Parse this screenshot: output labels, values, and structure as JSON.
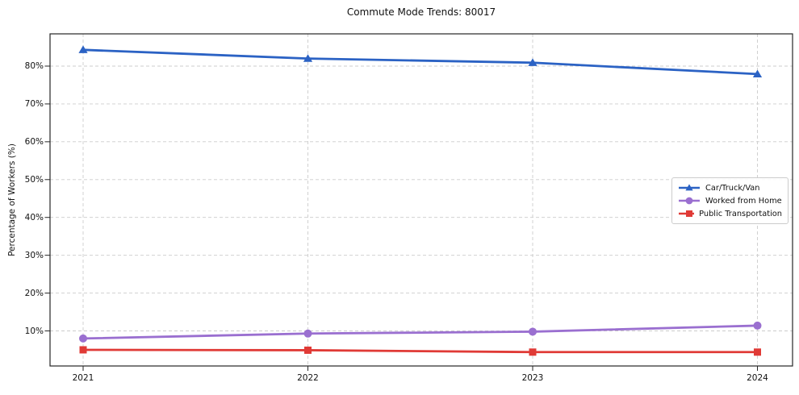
{
  "title": "Commute Mode Trends: 80017",
  "axes": {
    "ylabel": "Percentage of Workers (%)",
    "y_tick_labels": [
      "10%",
      "20%",
      "30%",
      "40%",
      "50%",
      "60%",
      "70%",
      "80%"
    ],
    "y_tick_values": [
      10,
      20,
      30,
      40,
      50,
      60,
      70,
      80
    ],
    "x_tick_labels": [
      "2021",
      "2022",
      "2023",
      "2024"
    ]
  },
  "colors": {
    "car_truck_van": "#2b62c4",
    "worked_from_home": "#9a6fd0",
    "public_transportation": "#e03a36",
    "grid": "#cccccc",
    "spine": "#262626",
    "text": "#111111"
  },
  "chart_data": {
    "type": "line",
    "title": "Commute Mode Trends: 80017",
    "xlabel": "",
    "ylabel": "Percentage of Workers (%)",
    "x": [
      2021,
      2022,
      2023,
      2024
    ],
    "series": [
      {
        "name": "Car/Truck/Van",
        "marker": "triangle",
        "color": "#2b62c4",
        "values": [
          84.3,
          82.0,
          80.9,
          77.9
        ]
      },
      {
        "name": "Worked from Home",
        "marker": "circle",
        "color": "#9a6fd0",
        "values": [
          8.0,
          9.3,
          9.8,
          11.4
        ]
      },
      {
        "name": "Public Transportation",
        "marker": "square",
        "color": "#e03a36",
        "values": [
          5.0,
          4.9,
          4.4,
          4.4
        ]
      }
    ],
    "ylim": [
      0.7,
      88.5
    ],
    "grid": true,
    "grid_style": "dashed",
    "legend_position": "center right"
  }
}
